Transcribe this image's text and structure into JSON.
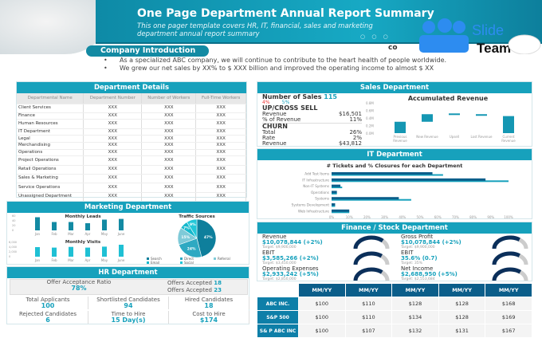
{
  "header": {
    "title": "One Page Department Annual Report Summary",
    "subtitle": "This one pager template covers HR, IT, financial, sales and marketing department annual report summary",
    "dots": "○ ○ ○",
    "logo_text": "SlideTeam",
    "logo_partial": "co"
  },
  "intro": {
    "title": "Company Introduction",
    "bullets": [
      "As a specialized ABC company, we will continue to contribute to the heart health of people worldwide.",
      "We grew our net sales by XX% to $ XXX billion and improved the operating income to almost $ XX"
    ]
  },
  "dept": {
    "title": "Department Details",
    "columns": [
      "Departmental Name",
      "Department Number",
      "Number of Workers",
      "Full-Time Workers"
    ],
    "rows": [
      [
        "Client Services",
        "XXX",
        "XXX",
        "XXX"
      ],
      [
        "Finance",
        "XXX",
        "XXX",
        "XXX"
      ],
      [
        "Human Resources",
        "XXX",
        "XXX",
        "XXX"
      ],
      [
        "IT Department",
        "XXX",
        "XXX",
        "XXX"
      ],
      [
        "Legal",
        "XXX",
        "XXX",
        "XXX"
      ],
      [
        "Merchandising",
        "XXX",
        "XXX",
        "XXX"
      ],
      [
        "Operations",
        "XXX",
        "XXX",
        "XXX"
      ],
      [
        "Project Operations",
        "XXX",
        "XXX",
        "XXX"
      ],
      [
        "Retail Operations",
        "XXX",
        "XXX",
        "XXX"
      ],
      [
        "Sales & Marketing",
        "XXX",
        "XXX",
        "XXX"
      ],
      [
        "Service Operations",
        "XXX",
        "XXX",
        "XXX"
      ],
      [
        "Unassigned Department",
        "XXX",
        "XXX",
        "XXX"
      ]
    ]
  },
  "sales": {
    "title": "Sales Department",
    "num_label": "Number of Sales",
    "num_value": "115",
    "chg1": "4%",
    "chg2": "5%",
    "upsell_title": "UP/CROSS SELL",
    "rev_label": "Revenue",
    "rev_value": "$16,501",
    "pct_label": "% of Revenue",
    "pct_value": "11%",
    "churn_title": "CHURN",
    "total_label": "Total",
    "total_value": "26%",
    "rate_label": "Rate",
    "rate_value": "2%",
    "crev_label": "Revenue",
    "crev_value": "$43,812"
  },
  "chart_data": [
    {
      "type": "bar",
      "title": "Accumulated Revenue",
      "subtype": "waterfall",
      "categories": [
        "Previous Revenue",
        "New Revenue",
        "Upsell",
        "Lost Revenue",
        "Current Revenue"
      ],
      "start": [
        0,
        0.3,
        0.5,
        0.47,
        0
      ],
      "end": [
        0.3,
        0.5,
        0.52,
        0.5,
        0.45
      ],
      "yticks": [
        "0.0M",
        "0.2M",
        "0.4M",
        "0.6M",
        "0.8M"
      ],
      "ylim": [
        0,
        0.8
      ]
    },
    {
      "type": "bar",
      "orientation": "horizontal",
      "title": "# Tickets and % Closures for each Department",
      "categories": [
        "Add Test Items",
        "IT Infrastructure",
        "Non-IT Systems",
        "Operations",
        "Systems",
        "Systems Development",
        "Web Infrastructure"
      ],
      "series": [
        {
          "values": [
            57,
            87,
            5,
            3,
            38,
            2,
            10
          ]
        },
        {
          "values": [
            63,
            100,
            6,
            3,
            45,
            2,
            10
          ]
        }
      ],
      "xticks": [
        "0%",
        "10%",
        "20%",
        "30%",
        "40%",
        "50%",
        "60%",
        "70%",
        "80%",
        "90%",
        "100%"
      ],
      "xlim": [
        0,
        100
      ],
      "colors": [
        "#0b5e8a",
        "#17a1bc"
      ]
    },
    {
      "type": "bar",
      "title": "Monthly Leads",
      "categories": [
        "Jan",
        "Feb",
        "Mar",
        "Apr",
        "May",
        "June"
      ],
      "values": [
        55,
        35,
        35,
        30,
        45,
        48
      ],
      "yticks": [
        "0",
        "20",
        "40",
        "60"
      ],
      "ylim": [
        0,
        60
      ]
    },
    {
      "type": "bar",
      "title": "Monthly Visits",
      "categories": [
        "Jan",
        "Feb",
        "Mar",
        "Apr",
        "May",
        "June"
      ],
      "values": [
        4000,
        3800,
        4100,
        3800,
        4200,
        5000
      ],
      "yticks": [
        "0",
        "2,000",
        "4,000",
        "6,000"
      ],
      "ylim": [
        0,
        6000
      ]
    },
    {
      "type": "pie",
      "title": "Traffic Sources",
      "labels": [
        "Search",
        "Direct",
        "Referral",
        "Email",
        "Social"
      ],
      "values": [
        47,
        24,
        15,
        7,
        9
      ],
      "colors": [
        "#0e7f9c",
        "#2ea9c2",
        "#7fcad8",
        "#16b8cc",
        "#22c7d8"
      ]
    }
  ],
  "marketing": {
    "title": "Marketing Department"
  },
  "it": {
    "title": "IT Department"
  },
  "hr": {
    "title": "HR Department",
    "oar_label": "Offer Acceptance Ratio",
    "oar_value": "78%",
    "oa1_label": "Offers Accepted",
    "oa1_value": "18",
    "oa2_label": "Offers Accepted",
    "oa2_value": "23",
    "cells": [
      {
        "label": "Total Applicants",
        "value": "100"
      },
      {
        "label": "Shortlisted Candidates",
        "value": "94"
      },
      {
        "label": "Hired Candidates",
        "value": "18"
      },
      {
        "label": "Rejected Candidates",
        "value": "6"
      },
      {
        "label": "Time to Hire",
        "value": "15 Day(s)"
      },
      {
        "label": "Cost to Hire",
        "value": "$174"
      }
    ]
  },
  "finance": {
    "title": "Finance / Stock Department",
    "kpis": [
      {
        "label": "Revenue",
        "value": "$10,078,844 (+2%)",
        "target": "Target: $9,900,000",
        "gauge": 0.75
      },
      {
        "label": "Gross Profit",
        "value": "$10,078,844 (+2%)",
        "target": "Target: $9,900,000",
        "gauge": 0.7
      },
      {
        "label": "EBIT",
        "value": "$3,585,266 (+2%)",
        "target": "Target: $3,450,000",
        "gauge": 0.72
      },
      {
        "label": "EBIT",
        "value": "35.6% (0.7)",
        "target": "Target: 35%",
        "gauge": 0.7
      },
      {
        "label": "Operating Expenses",
        "value": "$2,933,242 (+5%)",
        "target": "Target: $2,850,000",
        "gauge": 0.73
      },
      {
        "label": "Net Income",
        "value": "$2,688,950 (+5%)",
        "target": "Target: $2,553,684",
        "gauge": 0.72
      }
    ],
    "table": {
      "headers": [
        "MM/YY",
        "MM/YY",
        "MM/YY",
        "MM/YY",
        "MM/YY"
      ],
      "rows": [
        {
          "name": "ABC INC.",
          "values": [
            "$100",
            "$110",
            "$128",
            "$128",
            "$168"
          ]
        },
        {
          "name": "S&P 500",
          "values": [
            "$100",
            "$110",
            "$134",
            "$128",
            "$169"
          ]
        },
        {
          "name": "S& P ABC INC",
          "values": [
            "$100",
            "$107",
            "$132",
            "$131",
            "$167"
          ]
        }
      ]
    }
  }
}
